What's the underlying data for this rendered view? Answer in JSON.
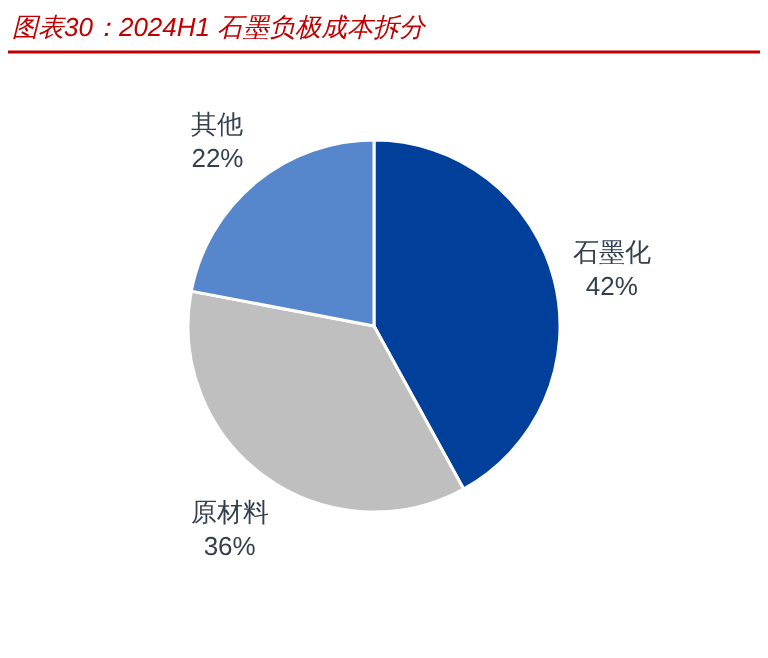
{
  "chart_data": {
    "type": "pie",
    "title": "图表30：2024H1 石墨负极成本拆分",
    "categories": [
      "石墨化",
      "原材料",
      "其他"
    ],
    "values": [
      42,
      36,
      22
    ],
    "colors": [
      "#00409a",
      "#bfbfbf",
      "#5686cc"
    ],
    "value_labels": [
      "42%",
      "36%",
      "22%"
    ],
    "legend": false
  }
}
